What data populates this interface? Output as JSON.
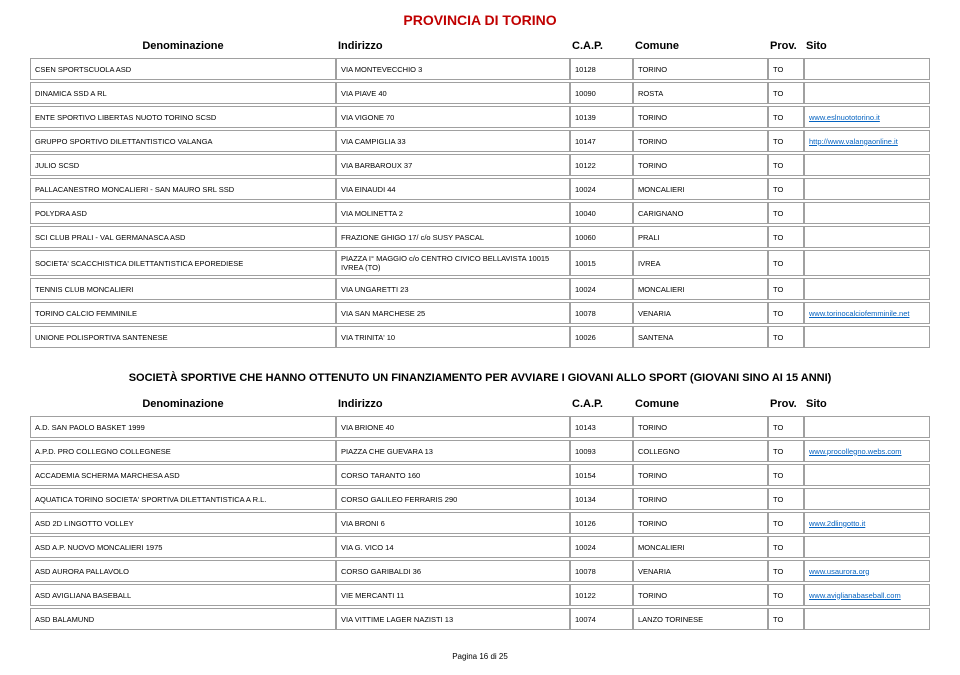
{
  "page_title": "PROVINCIA DI TORINO",
  "header": {
    "denominazione": "Denominazione",
    "indirizzo": "Indirizzo",
    "cap": "C.A.P.",
    "comune": "Comune",
    "prov": "Prov.",
    "sito": "Sito"
  },
  "rows1": [
    {
      "d": "CSEN SPORTSCUOLA ASD",
      "i": "VIA MONTEVECCHIO 3",
      "c": "10128",
      "co": "TORINO",
      "p": "TO",
      "s": ""
    },
    {
      "d": "DINAMICA SSD A RL",
      "i": "VIA PIAVE 40",
      "c": "10090",
      "co": "ROSTA",
      "p": "TO",
      "s": ""
    },
    {
      "d": "ENTE SPORTIVO LIBERTAS NUOTO TORINO SCSD",
      "i": "VIA VIGONE 70",
      "c": "10139",
      "co": "TORINO",
      "p": "TO",
      "s": "www.eslnuototorino.it"
    },
    {
      "d": "GRUPPO SPORTIVO DILETTANTISTICO VALANGA",
      "i": "VIA CAMPIGLIA 33",
      "c": "10147",
      "co": "TORINO",
      "p": "TO",
      "s": "http://www.valangaonline.it"
    },
    {
      "d": "JULIO SCSD",
      "i": "VIA BARBAROUX 37",
      "c": "10122",
      "co": "TORINO",
      "p": "TO",
      "s": ""
    },
    {
      "d": "PALLACANESTRO MONCALIERI - SAN MAURO SRL SSD",
      "i": "VIA EINAUDI 44",
      "c": "10024",
      "co": "MONCALIERI",
      "p": "TO",
      "s": ""
    },
    {
      "d": "POLYDRA ASD",
      "i": "VIA MOLINETTA 2",
      "c": "10040",
      "co": "CARIGNANO",
      "p": "TO",
      "s": ""
    },
    {
      "d": "SCI CLUB PRALI - VAL GERMANASCA ASD",
      "i": "FRAZIONE GHIGO 17/ c/o SUSY PASCAL",
      "c": "10060",
      "co": "PRALI",
      "p": "TO",
      "s": ""
    },
    {
      "d": "SOCIETA' SCACCHISTICA DILETTANTISTICA EPOREDIESE",
      "i": "PIAZZA I° MAGGIO c/o CENTRO CIVICO BELLAVISTA 10015 IVREA (TO)",
      "c": "10015",
      "co": "IVREA",
      "p": "TO",
      "s": ""
    },
    {
      "d": "TENNIS CLUB MONCALIERI",
      "i": "VIA UNGARETTI 23",
      "c": "10024",
      "co": "MONCALIERI",
      "p": "TO",
      "s": ""
    },
    {
      "d": "TORINO CALCIO FEMMINILE",
      "i": "VIA SAN MARCHESE 25",
      "c": "10078",
      "co": "VENARIA",
      "p": "TO",
      "s": "www.torinocalciofemminile.net"
    },
    {
      "d": "UNIONE POLISPORTIVA SANTENESE",
      "i": "VIA TRINITA' 10",
      "c": "10026",
      "co": "SANTENA",
      "p": "TO",
      "s": ""
    }
  ],
  "section2_title": "SOCIETÀ SPORTIVE CHE HANNO OTTENUTO UN  FINANZIAMENTO PER AVVIARE I GIOVANI ALLO SPORT (GIOVANI SINO AI 15 ANNI)",
  "rows2": [
    {
      "d": "A.D. SAN PAOLO BASKET 1999",
      "i": "VIA BRIONE 40",
      "c": "10143",
      "co": "TORINO",
      "p": "TO",
      "s": ""
    },
    {
      "d": "A.P.D. PRO COLLEGNO COLLEGNESE",
      "i": "PIAZZA CHE GUEVARA 13",
      "c": "10093",
      "co": "COLLEGNO",
      "p": "TO",
      "s": "www.procollegno.webs.com"
    },
    {
      "d": "ACCADEMIA SCHERMA MARCHESA ASD",
      "i": "CORSO TARANTO 160",
      "c": "10154",
      "co": "TORINO",
      "p": "TO",
      "s": ""
    },
    {
      "d": "AQUATICA TORINO SOCIETA' SPORTIVA DILETTANTISTICA A R.L.",
      "i": "CORSO GALILEO FERRARIS 290",
      "c": "10134",
      "co": "TORINO",
      "p": "TO",
      "s": ""
    },
    {
      "d": "ASD 2D LINGOTTO VOLLEY",
      "i": "VIA BRONI 6",
      "c": "10126",
      "co": "TORINO",
      "p": "TO",
      "s": "www.2dlingotto.it"
    },
    {
      "d": "ASD A.P. NUOVO MONCALIERI 1975",
      "i": "VIA G. VICO 14",
      "c": "10024",
      "co": "MONCALIERI",
      "p": "TO",
      "s": ""
    },
    {
      "d": "ASD AURORA PALLAVOLO",
      "i": "CORSO GARIBALDI 36",
      "c": "10078",
      "co": "VENARIA",
      "p": "TO",
      "s": "www.usaurora.org"
    },
    {
      "d": "ASD AVIGLIANA BASEBALL",
      "i": "VIE MERCANTI 11",
      "c": "10122",
      "co": "TORINO",
      "p": "TO",
      "s": "www.aviglianabaseball.com"
    },
    {
      "d": "ASD BALAMUND",
      "i": "VIA VITTIME LAGER NAZISTI 13",
      "c": "10074",
      "co": "LANZO TORINESE",
      "p": "TO",
      "s": ""
    }
  ],
  "pagenum": "Pagina 16 di 25"
}
